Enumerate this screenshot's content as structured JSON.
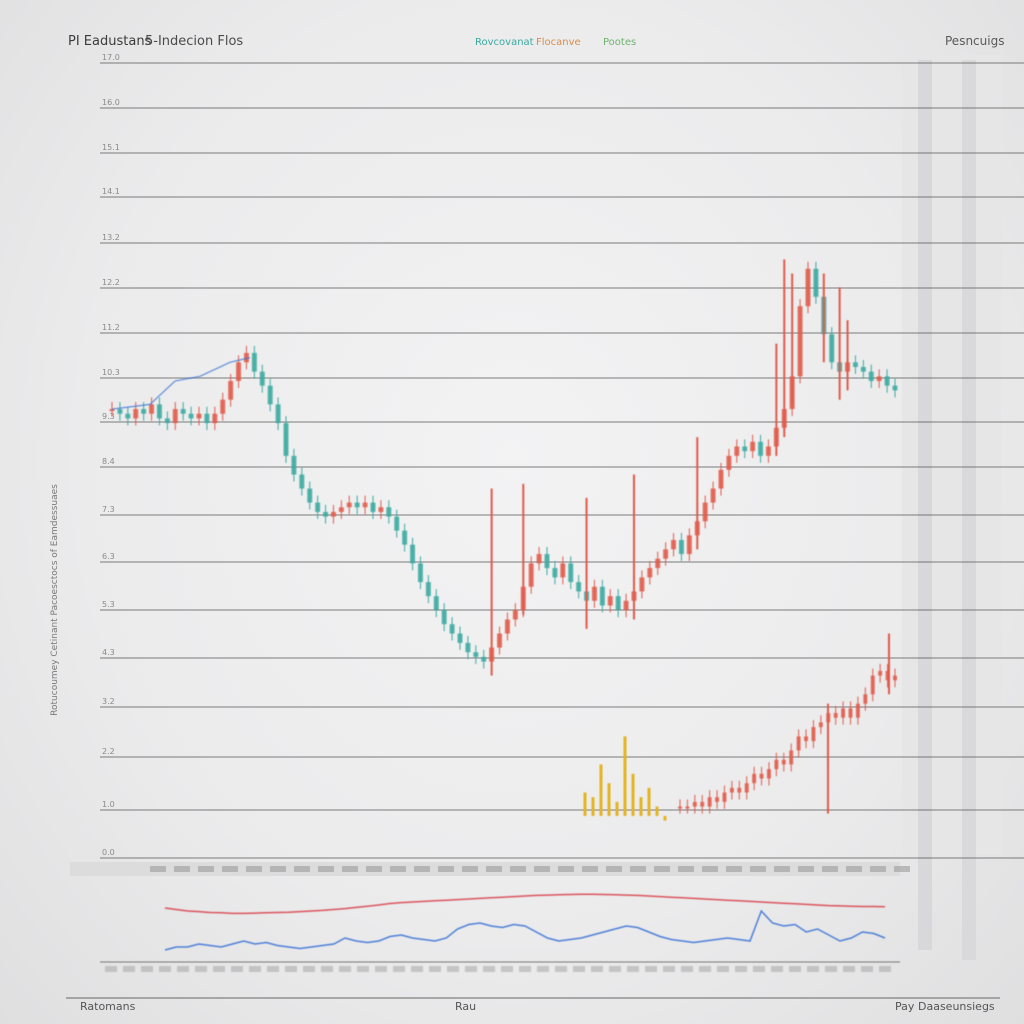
{
  "header": {
    "title": "PI Eadustans",
    "subtitle": "5-Indecion Flos",
    "legend": [
      {
        "label": "Rovcovanat",
        "color": "#3aa9a0"
      },
      {
        "label": "Flocanve",
        "color": "#d98c4a"
      },
      {
        "label": "Pootes",
        "color": "#6fb36f"
      }
    ],
    "top_right": "Pesncuigs"
  },
  "footer": {
    "left": "Ratomans",
    "center": "Rau",
    "right_small": "Pay",
    "right": "Daaseunsiegs"
  },
  "y_axis_title": "Rotucoumey Cetinant Pacoesctocs of Eamdessuaes",
  "colors": {
    "up": "#e05a4a",
    "down": "#3aa9a0",
    "line_blue": "#3b73d6",
    "line_red": "#d9434b",
    "yellow": "#e3b321",
    "grid": "#555555",
    "label": "#8a8a8a"
  },
  "chart_data": [
    {
      "type": "line",
      "subtype": "candlestick",
      "title": "PI Eadustans",
      "ylim": [
        0,
        17
      ],
      "x": [
        0,
        1,
        2,
        3,
        4,
        5,
        6,
        7,
        8,
        9,
        10,
        11,
        12,
        13,
        14,
        15,
        16,
        17,
        18,
        19,
        20,
        21,
        22,
        23,
        24,
        25,
        26,
        27,
        28,
        29,
        30,
        31,
        32,
        33,
        34,
        35,
        36,
        37,
        38,
        39,
        40,
        41,
        42,
        43,
        44,
        45,
        46,
        47,
        48,
        49,
        50,
        51,
        52,
        53,
        54,
        55,
        56,
        57,
        58,
        59,
        60,
        61,
        62,
        63,
        64,
        65,
        66,
        67,
        68,
        69,
        70,
        71,
        72,
        73,
        74,
        75,
        76,
        77,
        78,
        79,
        80,
        81,
        82,
        83,
        84,
        85,
        86,
        87,
        88,
        89,
        90,
        91,
        92,
        93,
        94,
        95,
        96,
        97,
        98,
        99
      ],
      "series": [
        {
          "values": [
            9.6,
            9.5,
            9.4,
            9.6,
            9.5,
            9.7,
            9.4,
            9.3,
            9.6,
            9.5,
            9.4,
            9.5,
            9.3,
            9.5,
            9.8,
            10.2,
            10.6,
            10.8,
            10.4,
            10.1,
            9.7,
            9.3,
            8.6,
            8.2,
            7.9,
            7.6,
            7.4,
            7.3,
            7.4,
            7.5,
            7.6,
            7.5,
            7.6,
            7.4,
            7.5,
            7.3,
            7.0,
            6.7,
            6.3,
            5.9,
            5.6,
            5.3,
            5.0,
            4.8,
            4.6,
            4.4,
            4.3,
            4.2,
            4.5,
            4.8,
            5.1,
            5.3,
            5.8,
            6.3,
            6.5,
            6.2,
            6.0,
            6.3,
            5.9,
            5.7,
            5.5,
            5.8,
            5.4,
            5.6,
            5.3,
            5.5,
            5.7,
            6.0,
            6.2,
            6.4,
            6.6,
            6.8,
            6.5,
            6.9,
            7.2,
            7.6,
            7.9,
            8.3,
            8.6,
            8.8,
            8.7,
            8.9,
            8.6,
            8.8,
            9.2,
            9.6,
            10.3,
            11.8,
            12.6,
            12.0,
            11.2,
            10.6,
            10.4,
            10.6,
            10.5,
            10.4,
            10.2,
            10.3,
            10.1,
            10.0
          ]
        }
      ],
      "spike_indices": [
        48,
        52,
        60,
        66,
        74,
        84,
        85,
        86,
        90,
        92,
        93
      ],
      "spike_highs": [
        7.9,
        8.0,
        7.7,
        8.2,
        9.0,
        11.0,
        12.8,
        12.5,
        12.5,
        12.2,
        11.5
      ]
    },
    {
      "type": "line",
      "subtype": "candlestick",
      "ylim": [
        0,
        17
      ],
      "x": [
        0,
        1,
        2,
        3,
        4,
        5,
        6,
        7,
        8,
        9,
        10,
        11,
        12,
        13,
        14,
        15,
        16,
        17,
        18,
        19,
        20,
        21,
        22,
        23,
        24,
        25,
        26,
        27,
        28,
        29
      ],
      "series": [
        {
          "values": [
            1.1,
            1.1,
            1.2,
            1.1,
            1.3,
            1.2,
            1.4,
            1.5,
            1.4,
            1.6,
            1.8,
            1.7,
            1.9,
            2.1,
            2.0,
            2.3,
            2.6,
            2.5,
            2.8,
            2.9,
            3.1,
            3.0,
            3.2,
            3.0,
            3.3,
            3.5,
            3.9,
            4.0,
            3.8,
            3.9
          ]
        }
      ],
      "yellow_values": [
        1.4,
        1.3,
        2.0,
        1.6,
        1.2,
        2.6,
        1.8,
        1.3,
        1.5,
        1.1,
        0.8
      ]
    },
    {
      "type": "line",
      "title": "",
      "series": [
        {
          "name": "",
          "color": "#3b73d6",
          "values": [
            0.5,
            0.6,
            0.6,
            0.7,
            0.65,
            0.6,
            0.7,
            0.8,
            0.7,
            0.75,
            0.65,
            0.6,
            0.55,
            0.6,
            0.65,
            0.7,
            0.9,
            0.8,
            0.75,
            0.8,
            0.95,
            1.0,
            0.9,
            0.85,
            0.8,
            0.9,
            1.2,
            1.35,
            1.4,
            1.3,
            1.25,
            1.35,
            1.3,
            1.1,
            0.9,
            0.8,
            0.85,
            0.9,
            1.0,
            1.1,
            1.2,
            1.3,
            1.25,
            1.1,
            0.95,
            0.85,
            0.8,
            0.75,
            0.8,
            0.85,
            0.9,
            0.85,
            0.8,
            1.8,
            1.4,
            1.3,
            1.35,
            1.1,
            1.2,
            1.0,
            0.8,
            0.9,
            1.1,
            1.05,
            0.9
          ]
        },
        {
          "name": "",
          "color": "#d9434b",
          "values": [
            1.9,
            1.85,
            1.8,
            1.78,
            1.75,
            1.74,
            1.72,
            1.72,
            1.73,
            1.74,
            1.75,
            1.76,
            1.78,
            1.8,
            1.82,
            1.85,
            1.88,
            1.92,
            1.96,
            2.0,
            2.05,
            2.08,
            2.1,
            2.12,
            2.14,
            2.16,
            2.18,
            2.2,
            2.22,
            2.24,
            2.26,
            2.28,
            2.3,
            2.32,
            2.33,
            2.34,
            2.35,
            2.36,
            2.36,
            2.35,
            2.34,
            2.33,
            2.32,
            2.3,
            2.28,
            2.26,
            2.24,
            2.22,
            2.2,
            2.18,
            2.16,
            2.14,
            2.12,
            2.1,
            2.08,
            2.06,
            2.04,
            2.02,
            2.0,
            1.98,
            1.97,
            1.96,
            1.95,
            1.95,
            1.94
          ]
        }
      ],
      "ylim": [
        0,
        2.5
      ]
    }
  ]
}
